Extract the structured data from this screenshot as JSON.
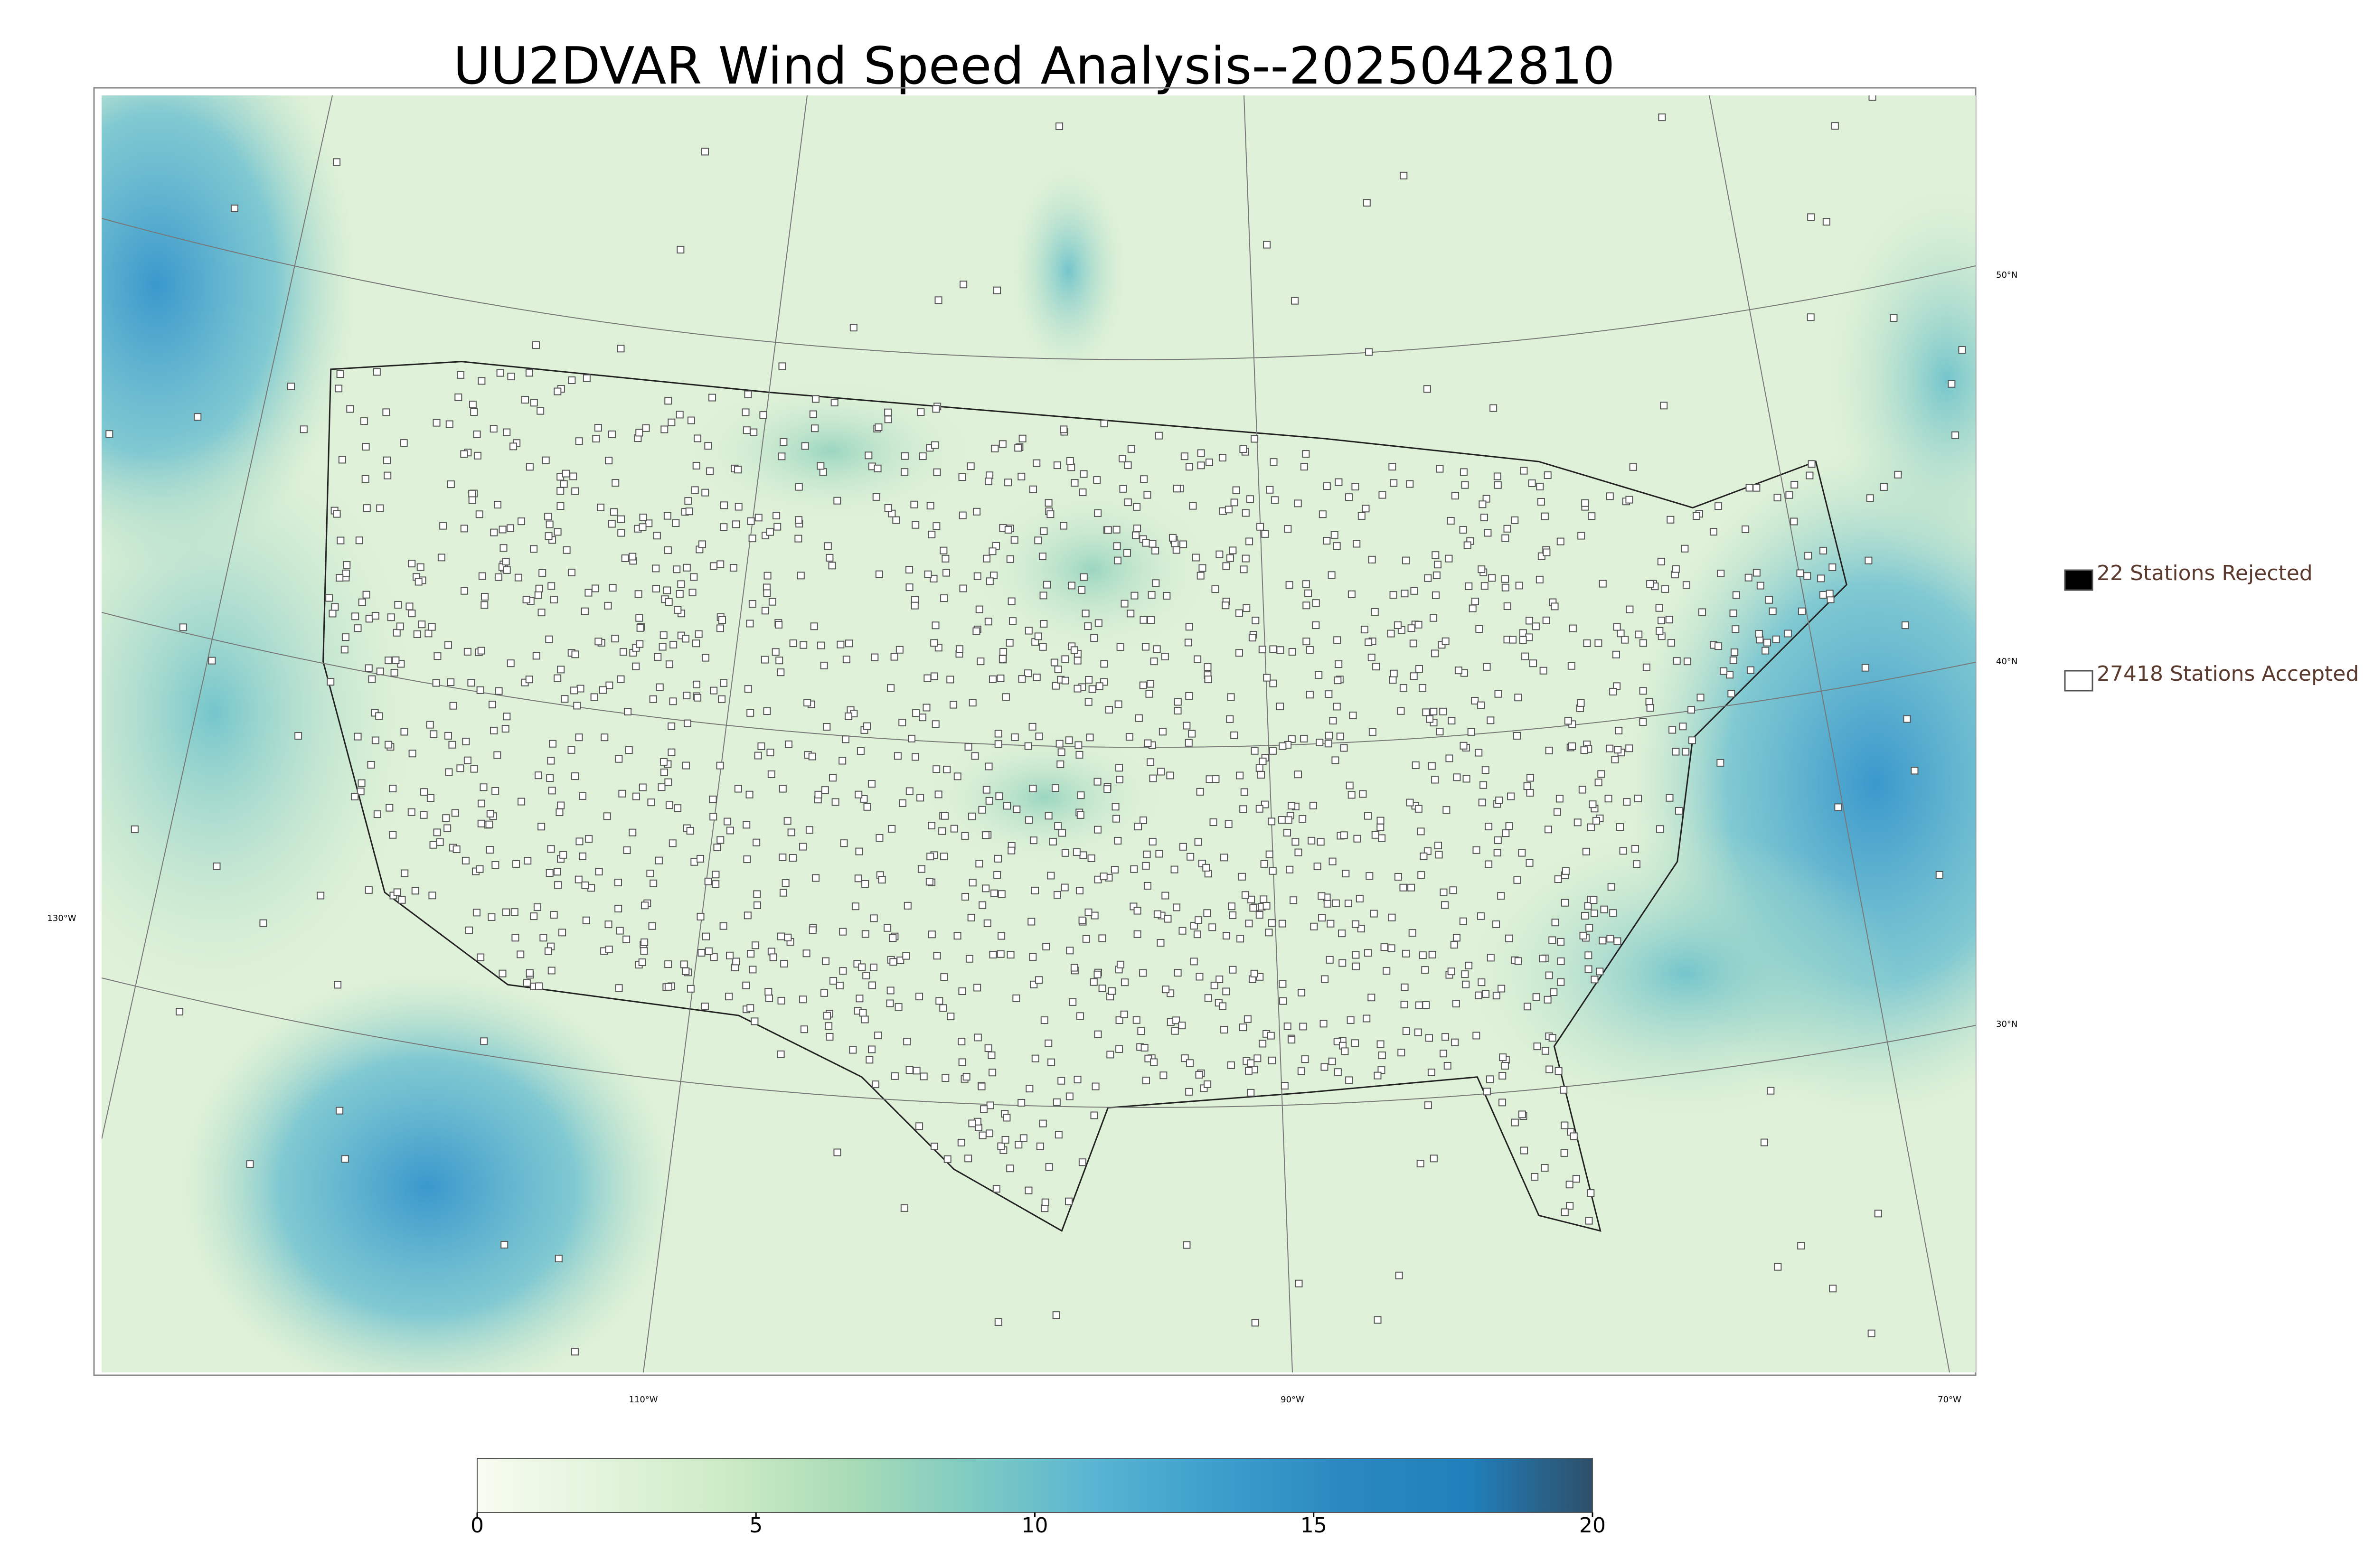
{
  "title": "UU2DVAR Wind Speed Analysis--2025042810",
  "map": {
    "lat_labels": [
      "50°N",
      "40°N",
      "30°N"
    ],
    "lon_labels": [
      "130°W",
      "110°W",
      "90°W",
      "70°W"
    ]
  },
  "legend": {
    "entries": [
      {
        "label": "22 Stations Rejected",
        "color": "#000000"
      },
      {
        "label": "27418 Stations Accepted",
        "color": "#ffffff"
      }
    ]
  },
  "colorbar": {
    "lim": [
      0,
      20
    ],
    "ticks": [
      0,
      5,
      10,
      15,
      20
    ],
    "colors": [
      "#f7fcf0",
      "#e3f4dc",
      "#cdebc6",
      "#a9dcb6",
      "#7fcbc2",
      "#57b4d2",
      "#3b9ecb",
      "#2b88c0",
      "#2080bb",
      "#2e4f6a"
    ]
  }
}
